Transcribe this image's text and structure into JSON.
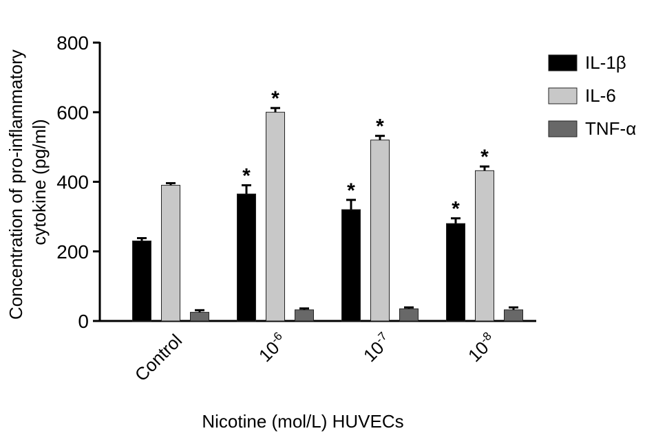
{
  "chart_data": {
    "type": "bar",
    "y_label_lines": [
      "Concentration of pro-inflammatory",
      "cytokine (pg/ml)"
    ],
    "x_label": "Nicotine (mol/L) HUVECs",
    "categories": [
      "Control",
      "10",
      "10",
      "10"
    ],
    "category_exponents": [
      null,
      "-6",
      "-7",
      "-8"
    ],
    "ylim": [
      0,
      800
    ],
    "yticks": [
      0,
      200,
      400,
      600,
      800
    ],
    "legend": "right",
    "series": [
      {
        "name": "IL-1β",
        "color": "#000000",
        "values": [
          230,
          365,
          320,
          280
        ],
        "errors": [
          8,
          25,
          28,
          15
        ],
        "significance": [
          null,
          "*",
          "*",
          "*"
        ]
      },
      {
        "name": "IL-6",
        "color": "#c8c8c8",
        "values": [
          390,
          600,
          520,
          432
        ],
        "errors": [
          6,
          12,
          12,
          12
        ],
        "significance": [
          null,
          "*",
          "*",
          "*"
        ]
      },
      {
        "name": "TNF-α",
        "color": "#686868",
        "values": [
          25,
          32,
          35,
          32
        ],
        "errors": [
          6,
          4,
          4,
          7
        ],
        "significance": [
          null,
          null,
          null,
          null
        ]
      }
    ]
  }
}
